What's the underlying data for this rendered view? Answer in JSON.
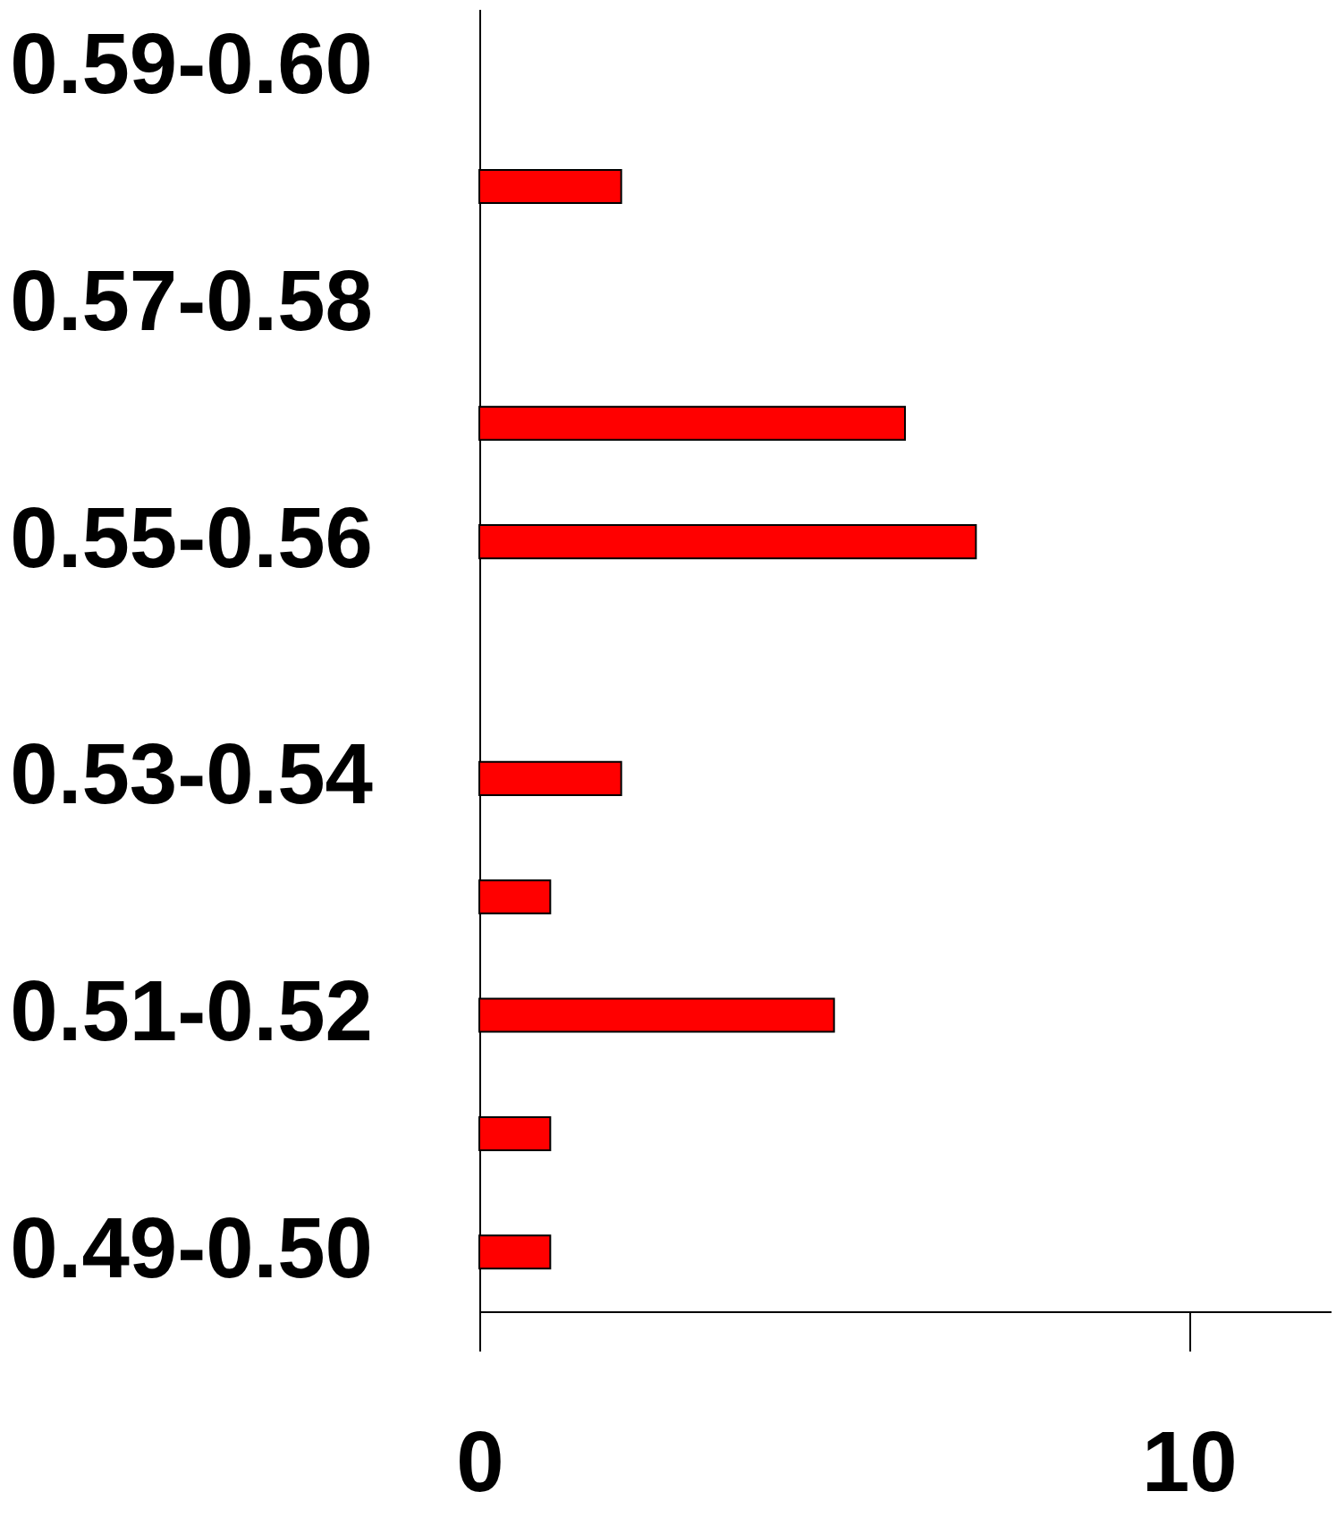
{
  "chart_data": {
    "type": "bar",
    "orientation": "horizontal",
    "categories": [
      "0.59-0.60",
      null,
      "0.57-0.58",
      null,
      "0.55-0.56",
      null,
      "0.53-0.54",
      null,
      "0.51-0.52",
      null,
      "0.49-0.50"
    ],
    "values": [
      0,
      2,
      0,
      6,
      7,
      0,
      2,
      1,
      5,
      1,
      1
    ],
    "color": "#ff0000",
    "xlim": [
      0,
      12
    ],
    "xticks": [
      0,
      10
    ],
    "grid": false
  }
}
